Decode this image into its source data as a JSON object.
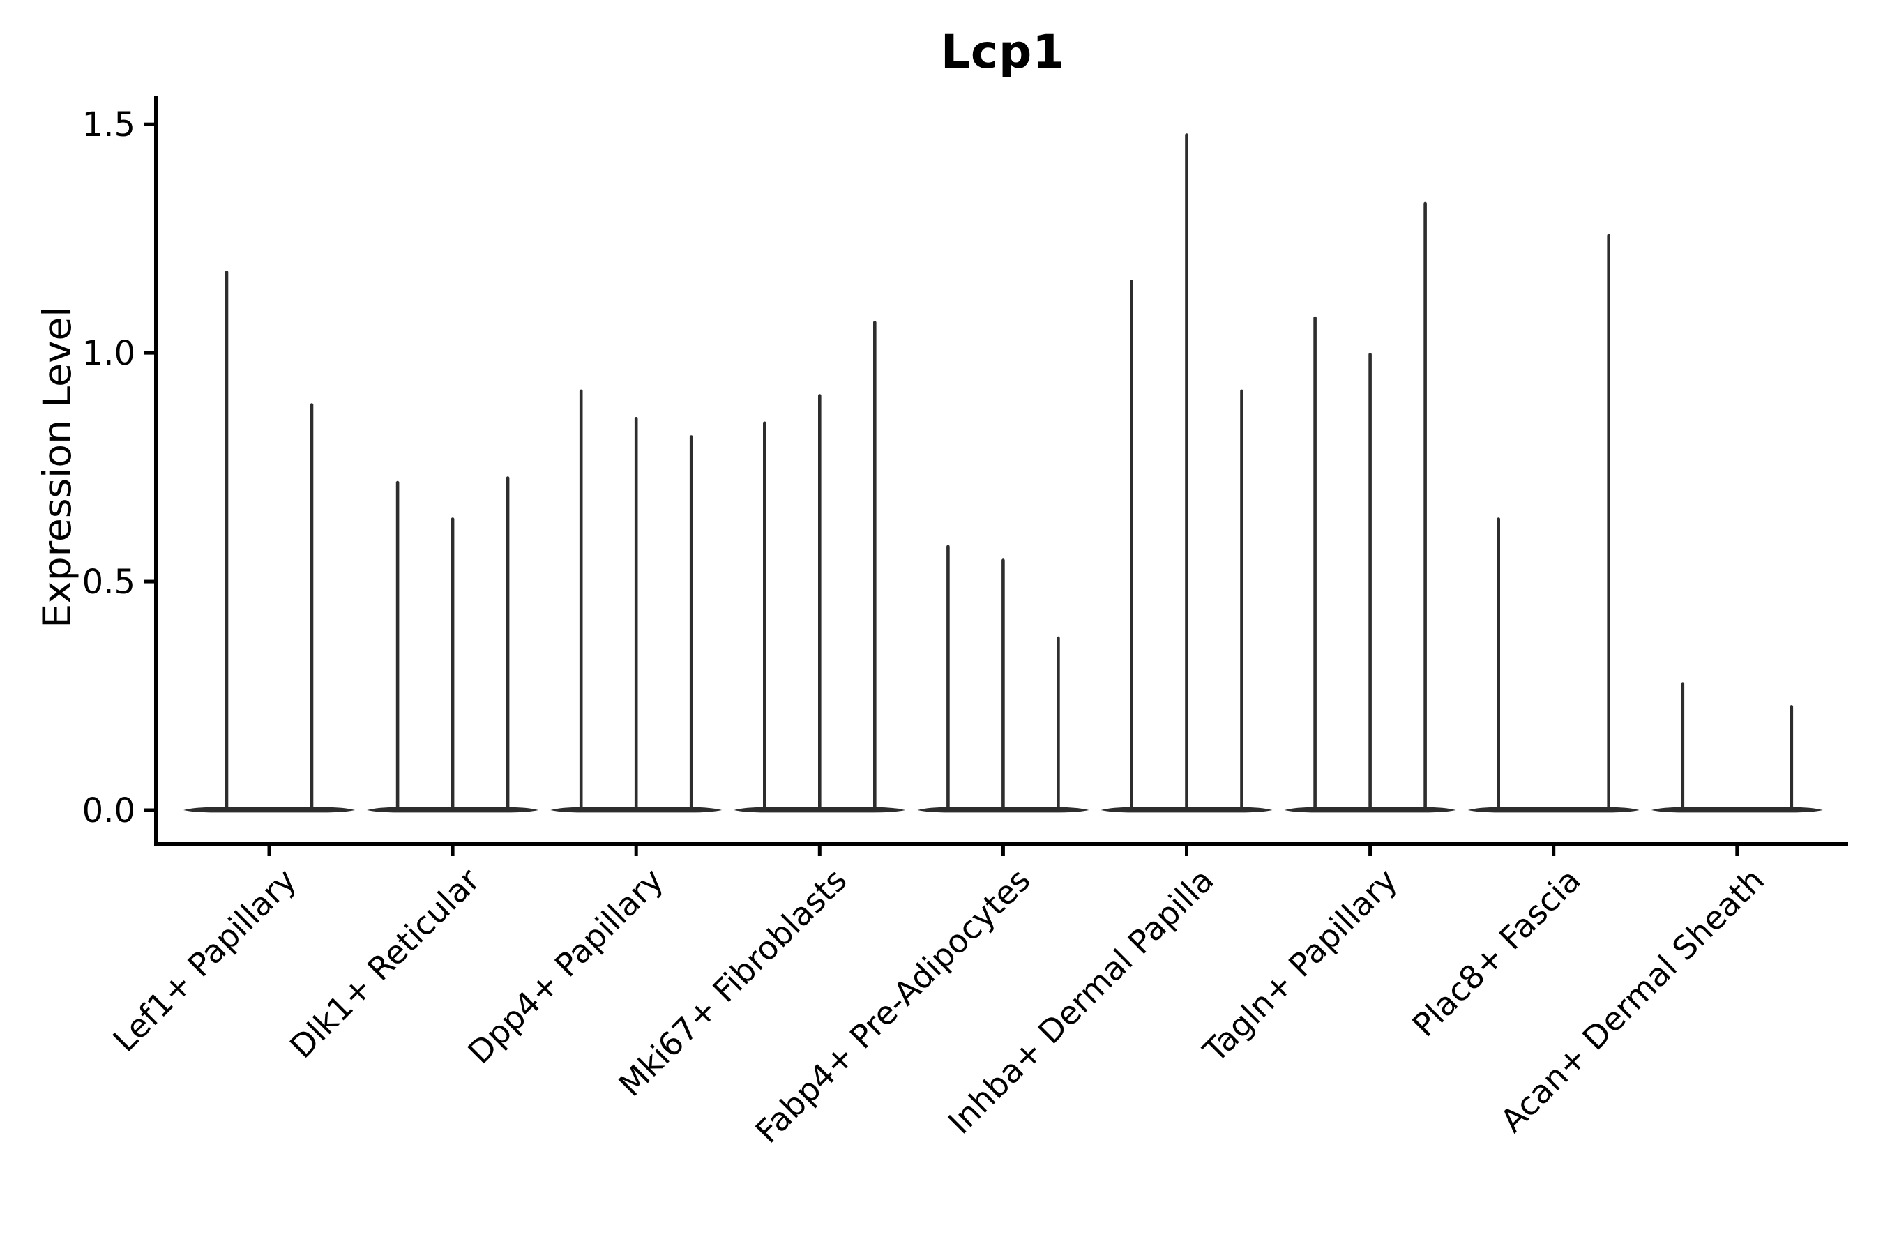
{
  "chart_data": {
    "type": "violin",
    "title": "Lcp1",
    "ylabel": "Expression Level",
    "xlabel": "",
    "ylim": [
      0.0,
      1.5
    ],
    "yticks": [
      "0.0",
      "0.5",
      "1.0",
      "1.5"
    ],
    "ytick_values": [
      0.0,
      0.5,
      1.0,
      1.5
    ],
    "grid": "off",
    "legend": "none",
    "categories": [
      "Lef1+ Papillary",
      "Dlk1+ Reticular",
      "Dpp4+ Papillary",
      "Mki67+ Fibroblasts",
      "Fabp4+ Pre-Adipocytes",
      "Inhba+ Dermal Papilla",
      "Tagln+ Papillary",
      "Plac8+ Fascia",
      "Acan+ Dermal Sheath"
    ],
    "groups": [
      {
        "category": "Lef1+ Papillary",
        "violins": [
          {
            "offset": -61,
            "max": 1.18
          },
          {
            "offset": 61,
            "max": 0.89
          }
        ]
      },
      {
        "category": "Dlk1+ Reticular",
        "violins": [
          {
            "offset": -79,
            "max": 0.72
          },
          {
            "offset": 0,
            "max": 0.64
          },
          {
            "offset": 79,
            "max": 0.73
          }
        ]
      },
      {
        "category": "Dpp4+ Papillary",
        "violins": [
          {
            "offset": -79,
            "max": 0.92
          },
          {
            "offset": 0,
            "max": 0.86
          },
          {
            "offset": 79,
            "max": 0.82
          }
        ]
      },
      {
        "category": "Mki67+ Fibroblasts",
        "violins": [
          {
            "offset": -79,
            "max": 0.85
          },
          {
            "offset": 0,
            "max": 0.91
          },
          {
            "offset": 79,
            "max": 1.07
          }
        ]
      },
      {
        "category": "Fabp4+ Pre-Adipocytes",
        "violins": [
          {
            "offset": -79,
            "max": 0.58
          },
          {
            "offset": 0,
            "max": 0.55
          },
          {
            "offset": 79,
            "max": 0.38
          }
        ]
      },
      {
        "category": "Inhba+ Dermal Papilla",
        "violins": [
          {
            "offset": -79,
            "max": 1.16
          },
          {
            "offset": 0,
            "max": 1.48
          },
          {
            "offset": 79,
            "max": 0.92
          }
        ]
      },
      {
        "category": "Tagln+ Papillary",
        "violins": [
          {
            "offset": -79,
            "max": 1.08
          },
          {
            "offset": 0,
            "max": 1.0
          },
          {
            "offset": 79,
            "max": 1.33
          }
        ]
      },
      {
        "category": "Plac8+ Fascia",
        "violins": [
          {
            "offset": -79,
            "max": 0.64
          },
          {
            "offset": 79,
            "max": 1.26
          }
        ]
      },
      {
        "category": "Acan+ Dermal Sheath",
        "violins": [
          {
            "offset": -78,
            "max": 0.28
          },
          {
            "offset": 78,
            "max": 0.23
          }
        ]
      }
    ],
    "colors": {
      "violin_line": "#2d2d2d",
      "axis": "#000000",
      "text": "#000000",
      "background": "#ffffff"
    }
  }
}
